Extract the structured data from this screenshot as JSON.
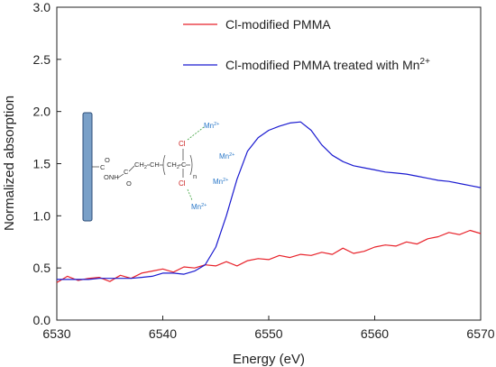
{
  "chart_data": {
    "type": "line",
    "xlabel": "Energy (eV)",
    "ylabel": "Normalized absorption",
    "xlim": [
      6530,
      6570
    ],
    "ylim": [
      0.0,
      3.0
    ],
    "xticks": [
      6530,
      6540,
      6550,
      6560,
      6570
    ],
    "yticks": [
      0.0,
      0.5,
      1.0,
      1.5,
      2.0,
      2.5,
      3.0
    ],
    "xtick_labels": [
      "6530",
      "6540",
      "6550",
      "6560",
      "6570"
    ],
    "ytick_labels": [
      "0.0",
      "0.5",
      "1.0",
      "1.5",
      "2.0",
      "2.5",
      "3.0"
    ],
    "legend_position": "top-center",
    "series": [
      {
        "name": "Cl-modified PMMA",
        "color": "#e8222a",
        "x": [
          6530,
          6531,
          6532,
          6533,
          6534,
          6535,
          6536,
          6537,
          6538,
          6539,
          6540,
          6541,
          6542,
          6543,
          6544,
          6545,
          6546,
          6547,
          6548,
          6549,
          6550,
          6551,
          6552,
          6553,
          6554,
          6555,
          6556,
          6557,
          6558,
          6559,
          6560,
          6561,
          6562,
          6563,
          6564,
          6565,
          6566,
          6567,
          6568,
          6569,
          6570
        ],
        "values": [
          0.36,
          0.42,
          0.38,
          0.4,
          0.41,
          0.37,
          0.43,
          0.4,
          0.45,
          0.47,
          0.49,
          0.46,
          0.51,
          0.5,
          0.53,
          0.52,
          0.56,
          0.52,
          0.57,
          0.59,
          0.58,
          0.62,
          0.6,
          0.63,
          0.62,
          0.65,
          0.63,
          0.69,
          0.64,
          0.66,
          0.7,
          0.72,
          0.71,
          0.75,
          0.73,
          0.78,
          0.8,
          0.84,
          0.82,
          0.86,
          0.83
        ]
      },
      {
        "name": "Cl-modified PMMA treated with Mn",
        "name_sup": "2+",
        "color": "#1a1ad0",
        "x": [
          6530,
          6531,
          6532,
          6533,
          6534,
          6535,
          6536,
          6537,
          6538,
          6539,
          6540,
          6541,
          6542,
          6543,
          6544,
          6545,
          6546,
          6547,
          6548,
          6549,
          6550,
          6551,
          6552,
          6553,
          6554,
          6555,
          6556,
          6557,
          6558,
          6559,
          6560,
          6561,
          6562,
          6563,
          6564,
          6565,
          6566,
          6567,
          6568,
          6569,
          6570
        ],
        "values": [
          0.39,
          0.39,
          0.39,
          0.39,
          0.4,
          0.4,
          0.4,
          0.4,
          0.41,
          0.42,
          0.45,
          0.45,
          0.44,
          0.47,
          0.53,
          0.7,
          1.0,
          1.35,
          1.62,
          1.75,
          1.82,
          1.86,
          1.89,
          1.9,
          1.82,
          1.68,
          1.58,
          1.52,
          1.48,
          1.46,
          1.44,
          1.42,
          1.41,
          1.4,
          1.38,
          1.36,
          1.34,
          1.33,
          1.31,
          1.29,
          1.27
        ]
      }
    ]
  },
  "inset": {
    "labels": {
      "c1": "C",
      "o1": "O",
      "onh": "ONH",
      "c2": "C",
      "o2": "O",
      "ch2": "CH",
      "ch2_sub": "2",
      "ch": "CH",
      "ch2b": "CH",
      "ch2b_sub": "2",
      "cq": "C",
      "n": "n",
      "cl_top": "Cl",
      "cl_bottom": "Cl",
      "mn": "Mn",
      "mn_sup": "2+"
    }
  }
}
